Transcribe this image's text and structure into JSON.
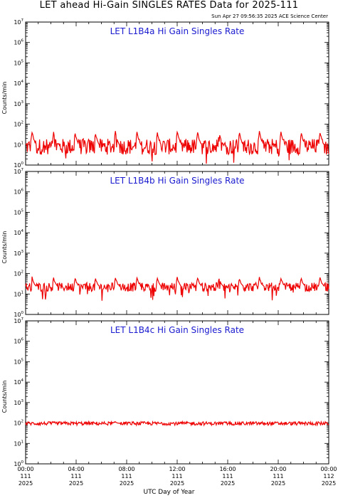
{
  "header": {
    "title": "LET ahead Hi-Gain SINGLES RATES Data for 2025-111",
    "timestamp": "Sun Apr 27 09:56:35 2025 ACE Science Center"
  },
  "colors": {
    "series": "#ee0000",
    "panel_title": "#1a1ad0"
  },
  "chart_data": [
    {
      "type": "line",
      "title": "LET L1B4a Hi Gain Singles Rate",
      "ylabel": "Counts/min",
      "yscale": "log",
      "ylim": [
        1,
        10000000
      ],
      "xlim_hours": [
        0,
        24
      ],
      "baseline": 8,
      "noise_factor": 0.45,
      "spike_peak": 45,
      "spike_hours": [
        0.5,
        2.2,
        3.9,
        5.5,
        7.1,
        8.8,
        10.4,
        12.0,
        13.6,
        15.3,
        16.9,
        18.5,
        20.2,
        21.8,
        23.3
      ]
    },
    {
      "type": "line",
      "title": "LET L1B4b Hi Gain Singles Rate",
      "ylabel": "Counts/min",
      "yscale": "log",
      "ylim": [
        1,
        10000000
      ],
      "xlim_hours": [
        0,
        24
      ],
      "baseline": 22,
      "noise_factor": 0.25,
      "spike_peak": 70,
      "spike_hours": [
        0.5,
        2.2,
        3.9,
        5.5,
        7.1,
        8.8,
        10.4,
        12.0,
        13.6,
        15.3,
        16.9,
        18.5,
        20.2,
        21.8,
        23.3
      ]
    },
    {
      "type": "line",
      "title": "LET L1B4c Hi Gain Singles Rate",
      "ylabel": "Counts/min",
      "yscale": "log",
      "ylim": [
        1,
        10000000
      ],
      "xlim_hours": [
        0,
        24
      ],
      "baseline": 95,
      "noise_factor": 0.1,
      "spike_peak": 120,
      "spike_hours": [
        7.1
      ]
    }
  ],
  "y_ticks": [
    {
      "base": "10",
      "exp": "0"
    },
    {
      "base": "10",
      "exp": "1"
    },
    {
      "base": "10",
      "exp": "2"
    },
    {
      "base": "10",
      "exp": "3"
    },
    {
      "base": "10",
      "exp": "4"
    },
    {
      "base": "10",
      "exp": "5"
    },
    {
      "base": "10",
      "exp": "6"
    },
    {
      "base": "10",
      "exp": "7"
    }
  ],
  "x_ticks": [
    {
      "time": "00:00",
      "day": "111",
      "year": "2025"
    },
    {
      "time": "04:00",
      "day": "111",
      "year": "2025"
    },
    {
      "time": "08:00",
      "day": "111",
      "year": "2025"
    },
    {
      "time": "12:00",
      "day": "111",
      "year": "2025"
    },
    {
      "time": "16:00",
      "day": "111",
      "year": "2025"
    },
    {
      "time": "20:00",
      "day": "111",
      "year": "2025"
    },
    {
      "time": "00:00",
      "day": "112",
      "year": "2025"
    }
  ],
  "xlabel": "UTC Day of Year"
}
